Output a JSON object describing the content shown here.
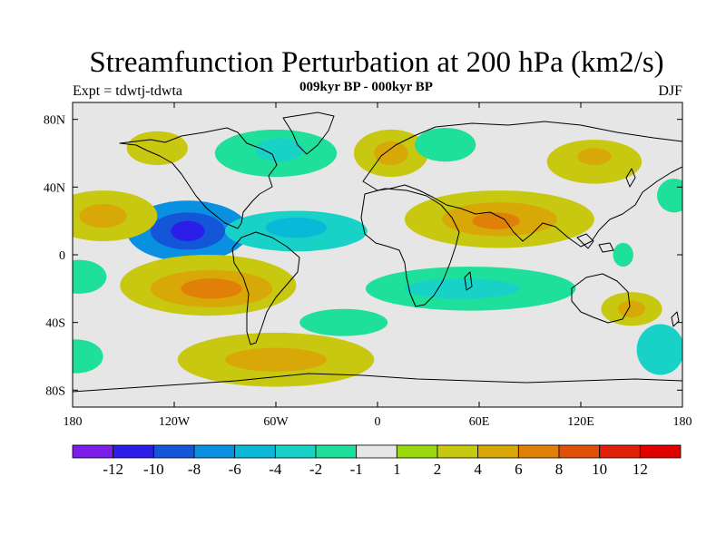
{
  "chart_data": {
    "type": "heatmap",
    "title": "Streamfunction Perturbation at 200 hPa (km2/s)",
    "subtitle": "009kyr BP - 000kyr BP",
    "left_label": "Expt = tdwtj-tdwta",
    "right_label": "DJF",
    "xlabel": "",
    "ylabel": "",
    "xlim": [
      -180,
      180
    ],
    "ylim": [
      -90,
      90
    ],
    "x_ticks": [
      {
        "value": -180,
        "label": "180"
      },
      {
        "value": -120,
        "label": "120W"
      },
      {
        "value": -60,
        "label": "60W"
      },
      {
        "value": 0,
        "label": "0"
      },
      {
        "value": 60,
        "label": "60E"
      },
      {
        "value": 120,
        "label": "120E"
      },
      {
        "value": 180,
        "label": "180"
      }
    ],
    "y_ticks": [
      {
        "value": 80,
        "label": "80N"
      },
      {
        "value": 40,
        "label": "40N"
      },
      {
        "value": 0,
        "label": "0"
      },
      {
        "value": -40,
        "label": "40S"
      },
      {
        "value": -80,
        "label": "80S"
      }
    ],
    "colorbar": {
      "colors": [
        "#7a1ee8",
        "#2a1ee8",
        "#1456d8",
        "#0a90e0",
        "#0ab8d8",
        "#18d2c8",
        "#1ee09a",
        "#e6e6e6",
        "#9ad810",
        "#c8c810",
        "#d8a808",
        "#e08008",
        "#e05008",
        "#e02008",
        "#e00000"
      ],
      "labels": [
        "-12",
        "-10",
        "-8",
        "-6",
        "-4",
        "-2",
        "-1",
        "1",
        "2",
        "4",
        "6",
        "8",
        "10",
        "12"
      ]
    },
    "regions": [
      {
        "lon": -112,
        "lat": 14,
        "rx": 36,
        "ry": 18,
        "value": -7
      },
      {
        "lon": -112,
        "lat": 14,
        "rx": 22,
        "ry": 11,
        "value": -9
      },
      {
        "lon": -112,
        "lat": 14,
        "rx": 10,
        "ry": 6,
        "value": -11
      },
      {
        "lon": -48,
        "lat": 14,
        "rx": 42,
        "ry": 12,
        "value": -3
      },
      {
        "lon": -48,
        "lat": 16,
        "rx": 18,
        "ry": 6,
        "value": -5
      },
      {
        "lon": -60,
        "lat": 60,
        "rx": 36,
        "ry": 14,
        "value": -2
      },
      {
        "lon": -58,
        "lat": 62,
        "rx": 14,
        "ry": 7,
        "value": -4
      },
      {
        "lon": -100,
        "lat": -18,
        "rx": 52,
        "ry": 18,
        "value": 2
      },
      {
        "lon": -98,
        "lat": -20,
        "rx": 36,
        "ry": 11,
        "value": 4
      },
      {
        "lon": -98,
        "lat": -20,
        "rx": 18,
        "ry": 6,
        "value": 7
      },
      {
        "lon": -60,
        "lat": -62,
        "rx": 58,
        "ry": 16,
        "value": 2
      },
      {
        "lon": -60,
        "lat": -62,
        "rx": 30,
        "ry": 7,
        "value": 4
      },
      {
        "lon": -162,
        "lat": 23,
        "rx": 32,
        "ry": 15,
        "value": 2
      },
      {
        "lon": -162,
        "lat": 23,
        "rx": 14,
        "ry": 7,
        "value": 5
      },
      {
        "lon": -130,
        "lat": 63,
        "rx": 18,
        "ry": 10,
        "value": 2
      },
      {
        "lon": 8,
        "lat": 60,
        "rx": 22,
        "ry": 14,
        "value": 2
      },
      {
        "lon": 8,
        "lat": 60,
        "rx": 10,
        "ry": 7,
        "value": 4
      },
      {
        "lon": 72,
        "lat": 21,
        "rx": 56,
        "ry": 17,
        "value": 2
      },
      {
        "lon": 72,
        "lat": 21,
        "rx": 34,
        "ry": 10,
        "value": 4
      },
      {
        "lon": 70,
        "lat": 20,
        "rx": 14,
        "ry": 5,
        "value": 6
      },
      {
        "lon": 128,
        "lat": 55,
        "rx": 28,
        "ry": 13,
        "value": 2
      },
      {
        "lon": 128,
        "lat": 58,
        "rx": 10,
        "ry": 5,
        "value": 4
      },
      {
        "lon": 55,
        "lat": -20,
        "rx": 62,
        "ry": 13,
        "value": -2
      },
      {
        "lon": 50,
        "lat": -20,
        "rx": 34,
        "ry": 6,
        "value": -4
      },
      {
        "lon": -20,
        "lat": -40,
        "rx": 26,
        "ry": 8,
        "value": -2
      },
      {
        "lon": 40,
        "lat": 65,
        "rx": 18,
        "ry": 10,
        "value": -2
      },
      {
        "lon": -176,
        "lat": -13,
        "rx": 16,
        "ry": 10,
        "value": -2
      },
      {
        "lon": -178,
        "lat": -60,
        "rx": 16,
        "ry": 10,
        "value": -2
      },
      {
        "lon": 150,
        "lat": -32,
        "rx": 18,
        "ry": 10,
        "value": 2
      },
      {
        "lon": 150,
        "lat": -32,
        "rx": 8,
        "ry": 5,
        "value": 4
      },
      {
        "lon": 167,
        "lat": -56,
        "rx": 14,
        "ry": 15,
        "value": -3
      },
      {
        "lon": 175,
        "lat": 35,
        "rx": 10,
        "ry": 10,
        "value": -2
      },
      {
        "lon": 145,
        "lat": 0,
        "rx": 6,
        "ry": 7,
        "value": -2
      }
    ]
  }
}
